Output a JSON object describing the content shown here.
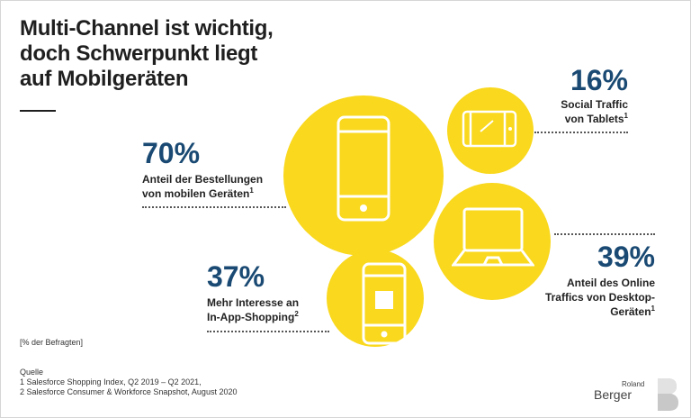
{
  "title": {
    "line1": "Multi-Channel ist wichtig,",
    "line2": "doch Schwerpunkt liegt",
    "line3": "auf Mobilgeräten"
  },
  "stats": [
    {
      "value": "70%",
      "line1": "Anteil der Bestellungen",
      "line2": "von mobilen Geräten",
      "sup": "1"
    },
    {
      "value": "16%",
      "line1": "Social Traffic",
      "line2": "von Tablets",
      "sup": "1"
    },
    {
      "value": "39%",
      "line1": "Anteil des Online",
      "line2": "Traffics von Desktop-",
      "line3": "Geräten",
      "sup": "1"
    },
    {
      "value": "37%",
      "line1": "Mehr Interesse an",
      "line2": "In-App-Shopping",
      "sup": "2"
    }
  ],
  "unit_note": "[% der Befragten]",
  "sources": {
    "label": "Quelle",
    "items": [
      "1   Salesforce Shopping Index, Q2 2019 – Q2 2021,",
      "2   Salesforce Consumer & Workforce Snapshot, August 2020"
    ]
  },
  "logo": {
    "small": "Roland",
    "big": "Berger"
  },
  "colors": {
    "accent": "#f9d81d",
    "number": "#1a4a73",
    "text": "#222222"
  },
  "icons": [
    "smartphone-icon",
    "tablet-icon",
    "laptop-icon",
    "app-phone-icon",
    "roland-berger-logo-icon"
  ]
}
